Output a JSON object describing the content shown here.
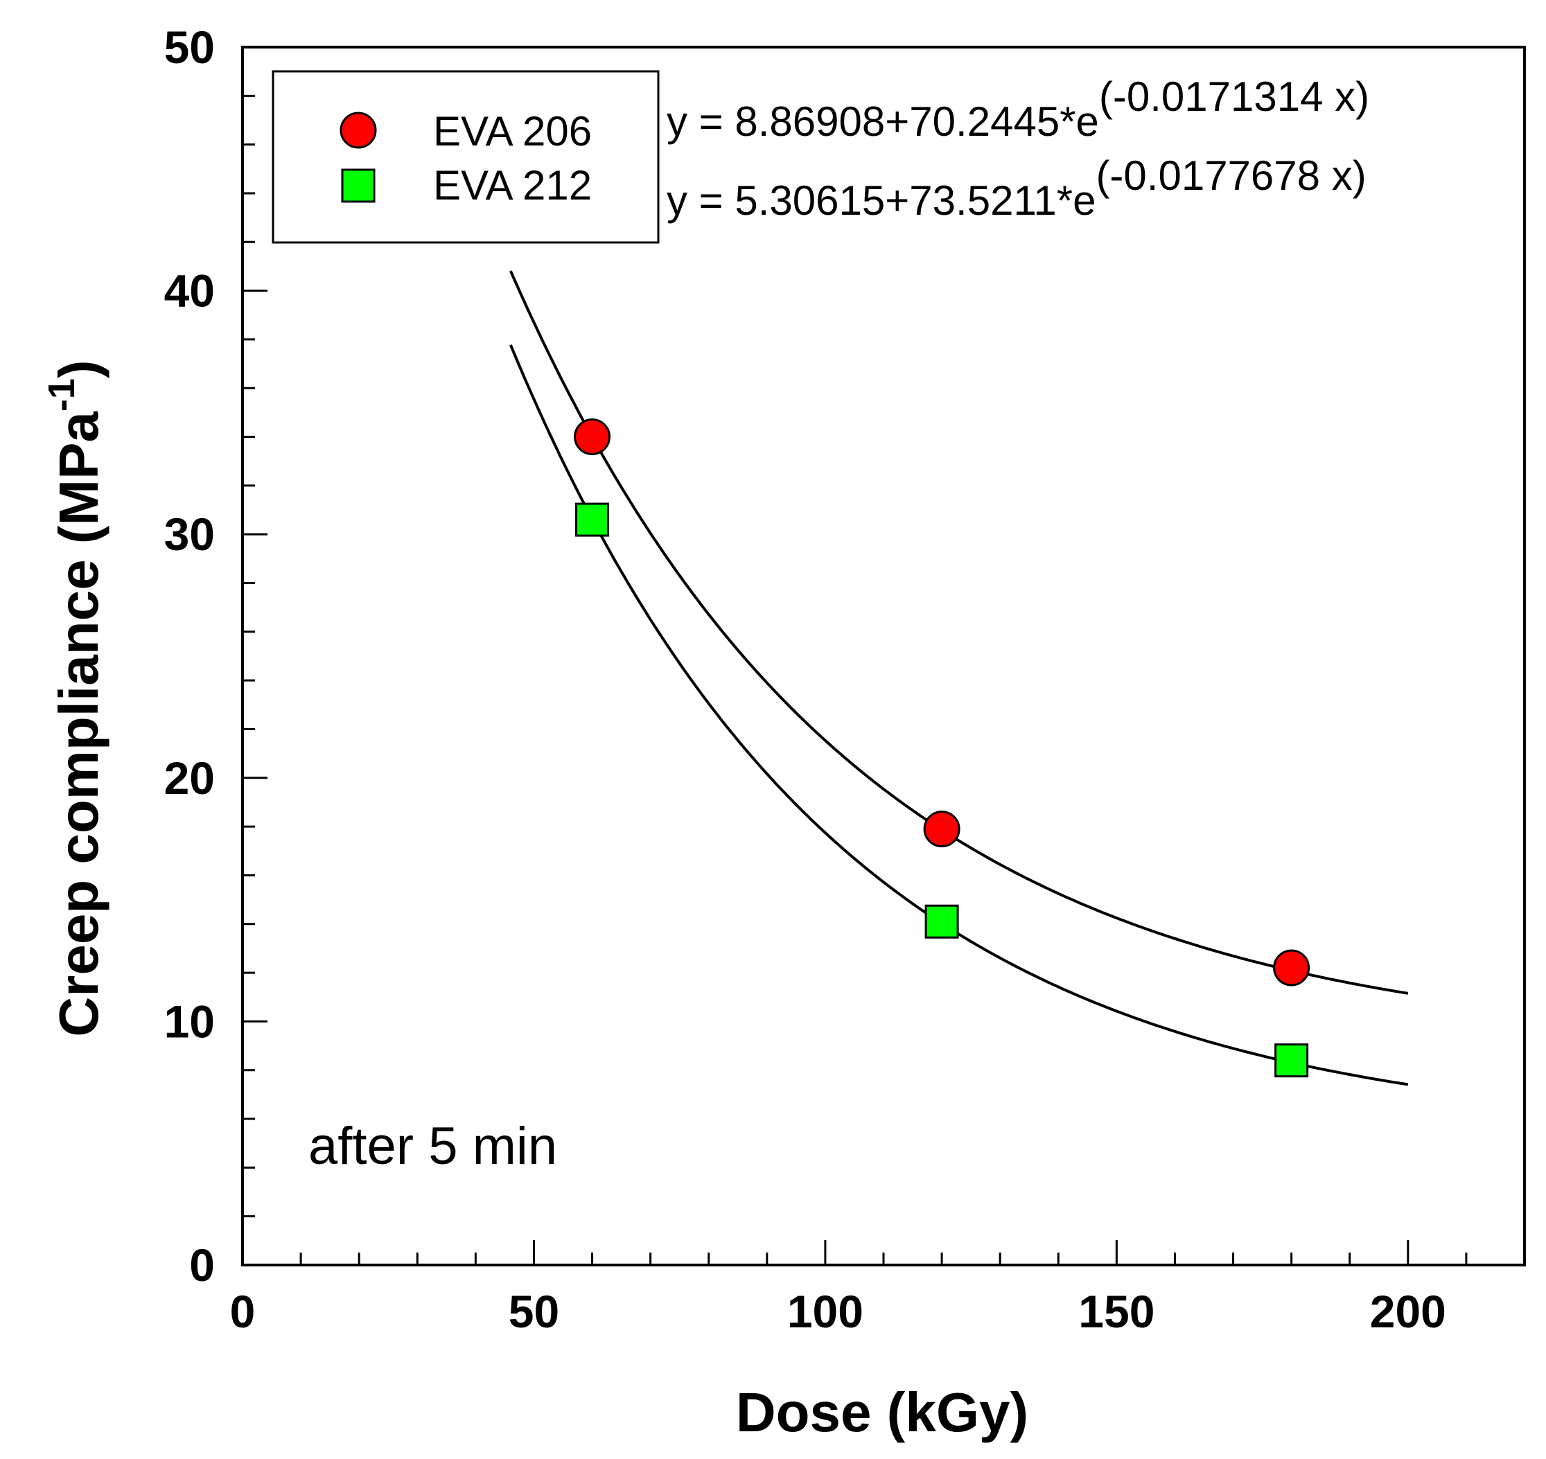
{
  "chart_data": {
    "type": "scatter",
    "xlabel": "Dose (kGy)",
    "ylabel_main": "Creep compliance (MPa",
    "ylabel_sup": "-1",
    "ylabel_close": ")",
    "xlim": [
      0,
      220
    ],
    "ylim": [
      0,
      50
    ],
    "x_ticks": [
      0,
      50,
      100,
      150,
      200
    ],
    "x_tick_labels": [
      "0",
      "50",
      "100",
      "150",
      "200"
    ],
    "x_minor_step": 10,
    "y_ticks": [
      0,
      10,
      20,
      30,
      40,
      50
    ],
    "y_tick_labels": [
      "0",
      "10",
      "20",
      "30",
      "40",
      "50"
    ],
    "y_minor_step": 2,
    "series": [
      {
        "name": "EVA 206",
        "marker": "circle",
        "color": "#ff0000",
        "x": [
          60,
          120,
          180
        ],
        "y": [
          34.0,
          17.9,
          12.2
        ],
        "fit": {
          "a": 8.86908,
          "b": 70.2445,
          "k": -0.0171314,
          "x_range": [
            46,
            200
          ]
        },
        "equation_base": "y = 8.86908+70.2445*e",
        "equation_exp": "(-0.0171314 x)"
      },
      {
        "name": "EVA 212",
        "marker": "square",
        "color": "#00ff00",
        "x": [
          60,
          120,
          180
        ],
        "y": [
          30.6,
          14.1,
          8.4
        ],
        "fit": {
          "a": 5.30615,
          "b": 73.5211,
          "k": -0.0177678,
          "x_range": [
            46,
            200
          ]
        },
        "equation_base": "y = 5.30615+73.5211*e",
        "equation_exp": "(-0.0177678 x)"
      }
    ],
    "annotation": "after 5 min",
    "legend_position": "top-left"
  }
}
